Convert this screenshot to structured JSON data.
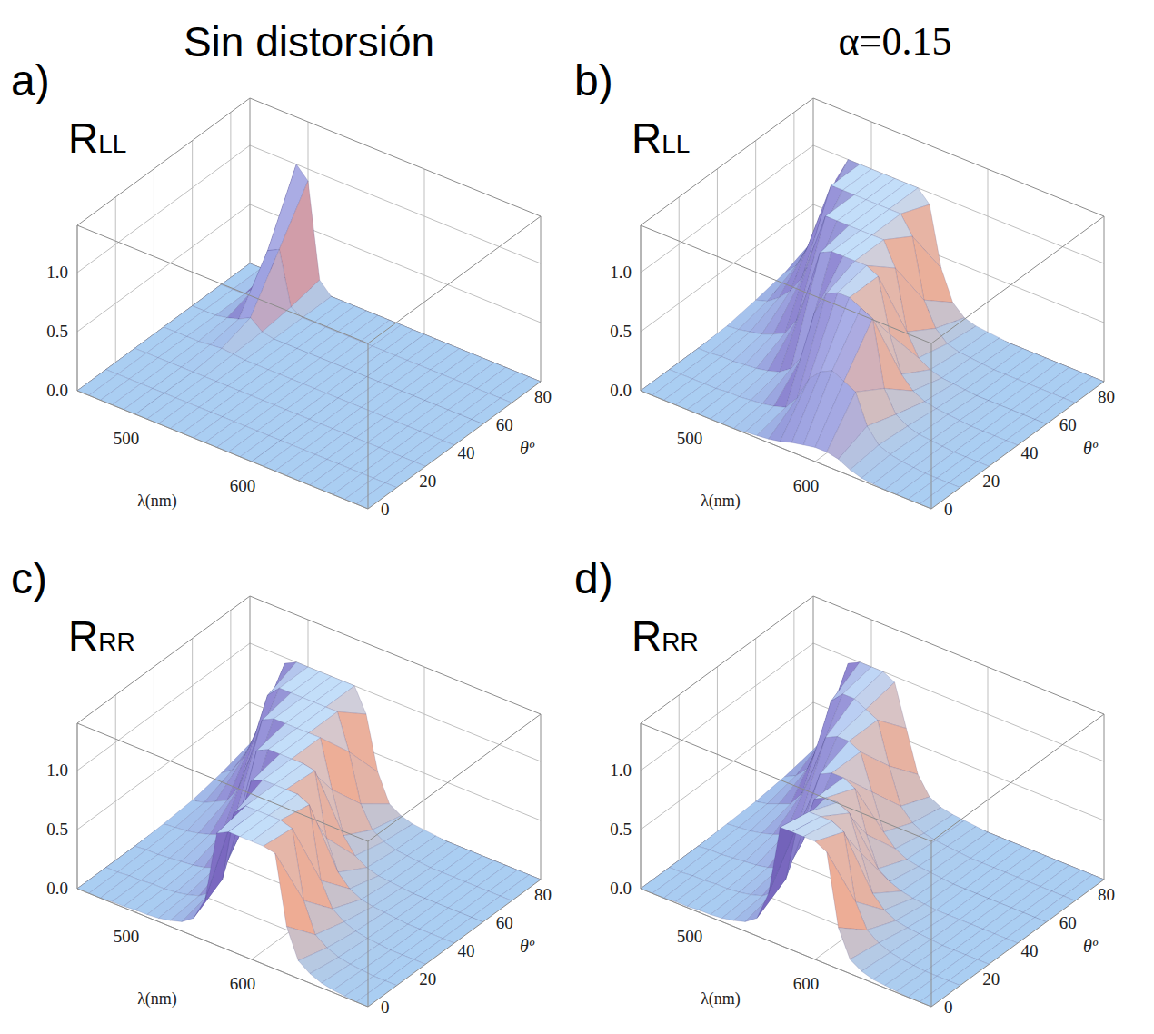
{
  "column_titles": [
    "Sin distorsión",
    "α=0.15"
  ],
  "chart_data": [
    {
      "type": "surface",
      "panel_label": "a)",
      "title": "RLL",
      "x_label": "λ(nm)",
      "y_label": "θº",
      "x": [
        450,
        460,
        470,
        480,
        490,
        500,
        510,
        520,
        530,
        540,
        550,
        560,
        570,
        580,
        590,
        600,
        610,
        620,
        630,
        640,
        650,
        660,
        670,
        680,
        690,
        700
      ],
      "y": [
        0,
        15,
        30,
        45,
        60,
        75,
        90
      ],
      "z": [
        [
          0,
          0,
          0,
          0,
          0,
          0,
          0,
          0,
          0,
          0,
          0,
          0,
          0,
          0,
          0,
          0,
          0,
          0,
          0,
          0,
          0,
          0,
          0,
          0,
          0,
          0
        ],
        [
          0,
          0,
          0,
          0,
          0,
          0,
          0,
          0,
          0,
          0,
          0,
          0,
          0,
          0,
          0,
          0,
          0,
          0,
          0,
          0,
          0,
          0,
          0,
          0,
          0,
          0
        ],
        [
          0,
          0,
          0,
          0,
          0,
          0,
          0,
          0,
          0,
          0,
          0,
          0,
          0,
          0,
          0,
          0,
          0,
          0,
          0,
          0,
          0,
          0,
          0,
          0,
          0,
          0
        ],
        [
          0,
          0,
          0,
          0,
          0.01,
          0.02,
          0.01,
          0,
          0,
          0,
          0,
          0,
          0,
          0,
          0,
          0,
          0,
          0,
          0,
          0,
          0,
          0,
          0,
          0,
          0,
          0
        ],
        [
          0,
          0,
          0,
          0.02,
          0.05,
          0.1,
          0.02,
          0,
          0,
          0,
          0,
          0,
          0,
          0,
          0,
          0,
          0,
          0,
          0,
          0,
          0,
          0,
          0,
          0,
          0,
          0
        ],
        [
          0,
          0,
          0,
          0.1,
          0.45,
          0.5,
          0.05,
          0,
          0,
          0,
          0,
          0,
          0,
          0,
          0,
          0,
          0,
          0,
          0,
          0,
          0,
          0,
          0,
          0,
          0,
          0
        ],
        [
          0,
          0,
          0.05,
          0.6,
          1,
          0.9,
          0.1,
          0,
          0,
          0,
          0,
          0,
          0,
          0,
          0,
          0,
          0,
          0,
          0,
          0,
          0,
          0,
          0,
          0,
          0,
          0
        ]
      ],
      "xlim": [
        450,
        700
      ],
      "ylim": [
        0,
        90
      ],
      "zlim": [
        0,
        1.4
      ],
      "xticks": [
        500,
        600
      ],
      "yticks": [
        0,
        20,
        40,
        60,
        80
      ],
      "zticks": [
        {
          "value": 0,
          "label": "0.0"
        },
        {
          "value": 0.5,
          "label": "0.5"
        },
        {
          "value": 1,
          "label": "1.0"
        }
      ],
      "grid": true
    },
    {
      "type": "surface",
      "panel_label": "b)",
      "title": "RLL",
      "x_label": "λ(nm)",
      "y_label": "θº",
      "x": [
        450,
        460,
        470,
        480,
        490,
        500,
        510,
        520,
        530,
        540,
        550,
        560,
        570,
        580,
        590,
        600,
        610,
        620,
        630,
        640,
        650,
        660,
        670,
        680,
        690,
        700
      ],
      "y": [
        0,
        15,
        30,
        45,
        60,
        75,
        90
      ],
      "z": [
        [
          0,
          0,
          0,
          0,
          0,
          0,
          0,
          0,
          0,
          0.01,
          0.02,
          0.03,
          0.05,
          0.08,
          0.1,
          0.12,
          0.12,
          0.1,
          0.05,
          0.02,
          0.01,
          0,
          0,
          0,
          0,
          0
        ],
        [
          0,
          0,
          0,
          0,
          0,
          0.01,
          0.01,
          0.02,
          0.03,
          0.05,
          0.08,
          0.2,
          0.4,
          0.5,
          0.55,
          0.5,
          0.45,
          0.2,
          0.08,
          0.04,
          0.02,
          0.01,
          0,
          0,
          0,
          0
        ],
        [
          0,
          0,
          0.01,
          0.01,
          0.02,
          0.03,
          0.05,
          0.08,
          0.15,
          0.3,
          0.7,
          0.9,
          0.95,
          0.95,
          0.9,
          0.85,
          0.3,
          0.12,
          0.06,
          0.03,
          0.02,
          0.01,
          0,
          0,
          0,
          0
        ],
        [
          0.01,
          0.02,
          0.04,
          0.06,
          0.1,
          0.15,
          0.3,
          0.6,
          0.95,
          1,
          1,
          1,
          1,
          0.95,
          0.5,
          0.2,
          0.1,
          0.05,
          0.03,
          0.02,
          0.01,
          0,
          0,
          0,
          0,
          0
        ],
        [
          0.05,
          0.08,
          0.15,
          0.25,
          0.4,
          0.7,
          1,
          1,
          1,
          1,
          1,
          1,
          0.8,
          0.3,
          0.12,
          0.06,
          0.03,
          0.02,
          0.01,
          0,
          0,
          0,
          0,
          0,
          0,
          0
        ],
        [
          0.1,
          0.2,
          0.4,
          0.7,
          1,
          1,
          1,
          1,
          1,
          1,
          1,
          0.85,
          0.35,
          0.15,
          0.06,
          0.03,
          0.02,
          0.01,
          0,
          0,
          0,
          0,
          0,
          0,
          0,
          0
        ],
        [
          0.2,
          0.4,
          0.8,
          1,
          1,
          1,
          1,
          1,
          1,
          1,
          0.9,
          0.4,
          0.15,
          0.06,
          0.03,
          0.02,
          0.01,
          0,
          0,
          0,
          0,
          0,
          0,
          0,
          0,
          0
        ]
      ],
      "xlim": [
        450,
        700
      ],
      "ylim": [
        0,
        90
      ],
      "zlim": [
        0,
        1.4
      ],
      "xticks": [
        500,
        600
      ],
      "yticks": [
        0,
        20,
        40,
        60,
        80
      ],
      "zticks": [
        {
          "value": 0,
          "label": "0.0"
        },
        {
          "value": 0.5,
          "label": "0.5"
        },
        {
          "value": 1,
          "label": "1.0"
        }
      ],
      "grid": true
    },
    {
      "type": "surface",
      "panel_label": "c)",
      "title": "RRR",
      "x_label": "λ(nm)",
      "y_label": "θº",
      "x": [
        450,
        460,
        470,
        480,
        490,
        500,
        510,
        520,
        530,
        540,
        550,
        560,
        570,
        580,
        590,
        600,
        610,
        620,
        630,
        640,
        650,
        660,
        670,
        680,
        690,
        700
      ],
      "y": [
        0,
        15,
        30,
        45,
        60,
        75,
        90
      ],
      "z": [
        [
          0,
          0,
          0,
          0.01,
          0.01,
          0.02,
          0.02,
          0.03,
          0.05,
          0.08,
          0.15,
          0.35,
          0.95,
          1,
          1,
          1,
          1,
          0.98,
          0.4,
          0.15,
          0.08,
          0.04,
          0.02,
          0.01,
          0,
          0
        ],
        [
          0,
          0,
          0.01,
          0.01,
          0.02,
          0.02,
          0.03,
          0.05,
          0.08,
          0.15,
          0.3,
          0.9,
          1,
          1,
          1,
          1,
          0.97,
          0.4,
          0.15,
          0.08,
          0.04,
          0.02,
          0.01,
          0,
          0,
          0
        ],
        [
          0,
          0.01,
          0.01,
          0.02,
          0.03,
          0.04,
          0.06,
          0.1,
          0.2,
          0.45,
          0.95,
          1,
          1,
          1,
          1,
          0.95,
          0.35,
          0.15,
          0.08,
          0.04,
          0.02,
          0.01,
          0,
          0,
          0,
          0
        ],
        [
          0.01,
          0.02,
          0.03,
          0.05,
          0.08,
          0.12,
          0.25,
          0.5,
          0.95,
          1,
          1,
          1,
          1,
          0.98,
          0.45,
          0.2,
          0.1,
          0.05,
          0.03,
          0.02,
          0.01,
          0,
          0,
          0,
          0,
          0
        ],
        [
          0.03,
          0.05,
          0.1,
          0.15,
          0.3,
          0.6,
          0.95,
          1,
          1,
          1,
          1,
          1,
          0.6,
          0.25,
          0.12,
          0.06,
          0.03,
          0.02,
          0.01,
          0,
          0,
          0,
          0,
          0,
          0,
          0
        ],
        [
          0.08,
          0.15,
          0.3,
          0.55,
          0.9,
          1,
          1,
          1,
          1,
          1,
          1,
          0.7,
          0.3,
          0.12,
          0.06,
          0.03,
          0.02,
          0.01,
          0,
          0,
          0,
          0,
          0,
          0,
          0,
          0
        ],
        [
          0.15,
          0.3,
          0.6,
          0.95,
          1,
          1,
          1,
          1,
          1,
          1,
          0.8,
          0.35,
          0.12,
          0.06,
          0.03,
          0.02,
          0.01,
          0,
          0,
          0,
          0,
          0,
          0,
          0,
          0,
          0
        ]
      ],
      "xlim": [
        450,
        700
      ],
      "ylim": [
        0,
        90
      ],
      "zlim": [
        0,
        1.4
      ],
      "xticks": [
        500,
        600
      ],
      "yticks": [
        0,
        20,
        40,
        60,
        80
      ],
      "zticks": [
        {
          "value": 0,
          "label": "0.0"
        },
        {
          "value": 0.5,
          "label": "0.5"
        },
        {
          "value": 1,
          "label": "1.0"
        }
      ],
      "grid": true
    },
    {
      "type": "surface",
      "panel_label": "d)",
      "title": "RRR",
      "x_label": "λ(nm)",
      "y_label": "θº",
      "x": [
        450,
        460,
        470,
        480,
        490,
        500,
        510,
        520,
        530,
        540,
        550,
        560,
        570,
        580,
        590,
        600,
        610,
        620,
        630,
        640,
        650,
        660,
        670,
        680,
        690,
        700
      ],
      "y": [
        0,
        15,
        30,
        45,
        60,
        75,
        90
      ],
      "z": [
        [
          0,
          0,
          0,
          0.01,
          0.01,
          0.02,
          0.02,
          0.03,
          0.05,
          0.08,
          0.15,
          0.4,
          1,
          1,
          1,
          1,
          0.95,
          0.35,
          0.12,
          0.06,
          0.03,
          0.02,
          0.01,
          0,
          0,
          0
        ],
        [
          0,
          0,
          0.01,
          0.01,
          0.02,
          0.02,
          0.03,
          0.05,
          0.08,
          0.15,
          0.3,
          0.8,
          0.95,
          0.95,
          0.95,
          0.9,
          0.35,
          0.15,
          0.08,
          0.04,
          0.02,
          0.01,
          0,
          0,
          0,
          0
        ],
        [
          0,
          0.01,
          0.01,
          0.02,
          0.03,
          0.04,
          0.06,
          0.1,
          0.2,
          0.4,
          0.8,
          0.85,
          0.85,
          0.8,
          0.5,
          0.2,
          0.1,
          0.05,
          0.03,
          0.02,
          0.01,
          0,
          0,
          0,
          0,
          0
        ],
        [
          0.01,
          0.02,
          0.03,
          0.05,
          0.08,
          0.12,
          0.2,
          0.45,
          0.75,
          0.8,
          0.8,
          0.75,
          0.4,
          0.15,
          0.08,
          0.04,
          0.02,
          0.01,
          0,
          0,
          0,
          0,
          0,
          0,
          0,
          0
        ],
        [
          0.02,
          0.04,
          0.08,
          0.12,
          0.25,
          0.5,
          0.8,
          0.85,
          0.85,
          0.8,
          0.5,
          0.2,
          0.1,
          0.05,
          0.03,
          0.02,
          0.01,
          0,
          0,
          0,
          0,
          0,
          0,
          0,
          0,
          0
        ],
        [
          0.05,
          0.1,
          0.2,
          0.45,
          0.85,
          0.95,
          0.95,
          0.9,
          0.85,
          0.5,
          0.2,
          0.1,
          0.05,
          0.03,
          0.02,
          0.01,
          0,
          0,
          0,
          0,
          0,
          0,
          0,
          0,
          0,
          0
        ],
        [
          0.1,
          0.25,
          0.55,
          0.95,
          1,
          1,
          1,
          0.95,
          0.6,
          0.25,
          0.1,
          0.05,
          0.03,
          0.02,
          0.01,
          0,
          0,
          0,
          0,
          0,
          0,
          0,
          0,
          0,
          0,
          0
        ]
      ],
      "xlim": [
        450,
        700
      ],
      "ylim": [
        0,
        90
      ],
      "zlim": [
        0,
        1.4
      ],
      "xticks": [
        500,
        600
      ],
      "yticks": [
        0,
        20,
        40,
        60,
        80
      ],
      "zticks": [
        {
          "value": 0,
          "label": "0.0"
        },
        {
          "value": 0.5,
          "label": "0.5"
        },
        {
          "value": 1,
          "label": "1.0"
        }
      ],
      "grid": true
    }
  ]
}
